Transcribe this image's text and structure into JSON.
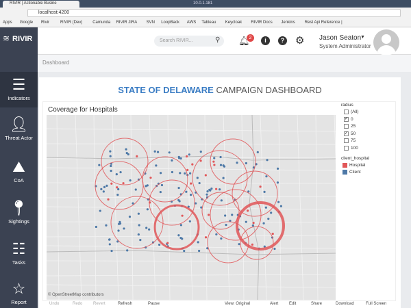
{
  "browser": {
    "tab_title": "RIVIR | Actionable Busine",
    "window_title": "10.0.1.181",
    "url": "localhost:4200",
    "bookmarks": [
      "Apps",
      "Google",
      "Rivir",
      "RIVIR (Dev)",
      "Camunda",
      "RIVIR JIRA",
      "SVN",
      "LoopBack",
      "AWS",
      "Tableau",
      "Keycloak",
      "RIVIR Docs",
      "Jenkins",
      "Rest Api Reference |"
    ]
  },
  "header": {
    "logo": "RIVIR",
    "search_placeholder": "Search RIVIR...",
    "notification_count": 2,
    "user_name": "Jason Seaton",
    "user_role": "System Administrator"
  },
  "sidebar": {
    "items": [
      "Indicators",
      "Threat Actor",
      "CoA",
      "Sightings",
      "Tasks",
      "Report"
    ]
  },
  "breadcrumb": "Dashboard",
  "dashboard": {
    "title_highlight": "STATE OF DELAWARE",
    "title_rest": "CAMPAIGN DASHBOARD",
    "chart_title": "Coverage for Hospitals",
    "map_credit": "© OpenStreetMap contributors",
    "filter": {
      "title": "radius",
      "options": [
        {
          "label": "(All)",
          "checked": false
        },
        {
          "label": "0",
          "checked": true
        },
        {
          "label": "25",
          "checked": false
        },
        {
          "label": "50",
          "checked": true
        },
        {
          "label": "75",
          "checked": false
        },
        {
          "label": "100",
          "checked": false
        }
      ]
    },
    "legend": {
      "title": "client_hospital",
      "items": [
        {
          "label": "Hospital",
          "color": "#e15759"
        },
        {
          "label": "Client",
          "color": "#4e79a7"
        }
      ]
    },
    "toolbar": [
      "Undo",
      "Redo",
      "Revert",
      "Refresh",
      "Pause",
      "View: Original",
      "Alert",
      "Edit",
      "Share",
      "Download",
      "Full Screen"
    ]
  }
}
